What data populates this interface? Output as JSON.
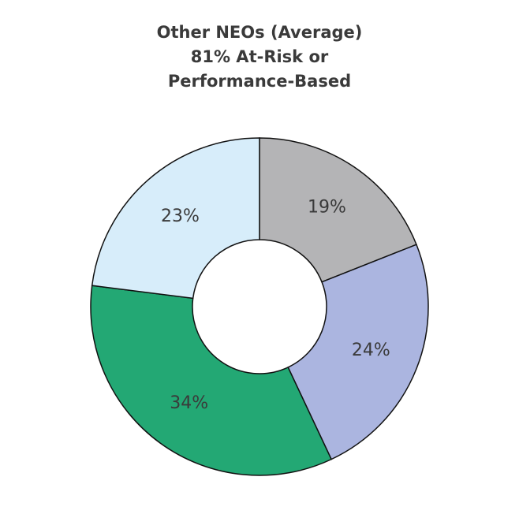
{
  "chart_data": {
    "type": "donut",
    "title": [
      "Other NEOs (Average)",
      "81% At-Risk or",
      "Performance-Based"
    ],
    "values": [
      19,
      24,
      34,
      23
    ],
    "value_labels": [
      "19%",
      "24%",
      "34%",
      "23%"
    ],
    "colors": [
      "#b4b4b6",
      "#abb5e0",
      "#23a874",
      "#d7edfa"
    ]
  }
}
